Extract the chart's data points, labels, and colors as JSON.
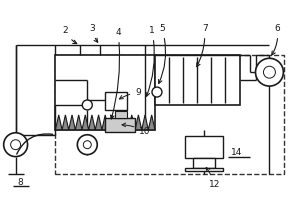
{
  "figsize": [
    3.0,
    2.0
  ],
  "dpi": 100,
  "lc": "#1a1a1a",
  "dc": "#333333",
  "xlim": [
    0,
    300
  ],
  "ylim": [
    0,
    200
  ]
}
